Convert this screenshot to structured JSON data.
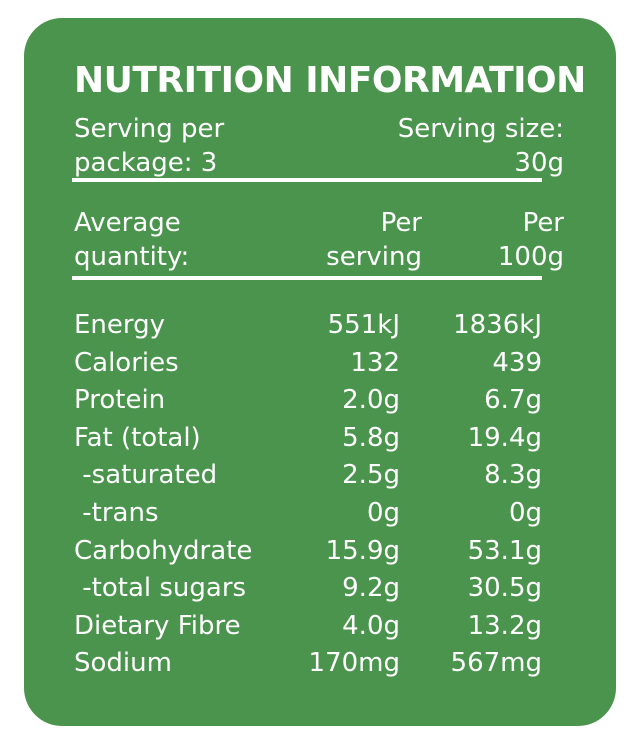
{
  "panel_color": "#4a944d",
  "text_color": "#ffffff",
  "title": "NUTRITION INFORMATION",
  "serving": {
    "per_package_line1": "Serving per",
    "per_package_line2": "package: 3",
    "size_line1": "Serving size:",
    "size_line2": "30g"
  },
  "header": {
    "label_line1": "Average",
    "label_line2": "quantity:",
    "per_serving_line1": "Per",
    "per_serving_line2": "serving",
    "per_100g_line1": "Per",
    "per_100g_line2": "100g"
  },
  "rows": [
    {
      "name": "Energy",
      "per_serving": "551kJ",
      "per_100g": "1836kJ"
    },
    {
      "name": "Calories",
      "per_serving": "132",
      "per_100g": "439"
    },
    {
      "name": "Protein",
      "per_serving": "2.0g",
      "per_100g": "6.7g"
    },
    {
      "name": "Fat (total)",
      "per_serving": "5.8g",
      "per_100g": "19.4g"
    },
    {
      "name": " -saturated",
      "per_serving": "2.5g",
      "per_100g": "8.3g"
    },
    {
      "name": " -trans",
      "per_serving": "0g",
      "per_100g": "0g"
    },
    {
      "name": "Carbohydrate",
      "per_serving": "15.9g",
      "per_100g": "53.1g"
    },
    {
      "name": " -total sugars",
      "per_serving": "9.2g",
      "per_100g": "30.5g"
    },
    {
      "name": "Dietary Fibre",
      "per_serving": "4.0g",
      "per_100g": "13.2g"
    },
    {
      "name": "Sodium",
      "per_serving": "170mg",
      "per_100g": "567mg"
    }
  ]
}
